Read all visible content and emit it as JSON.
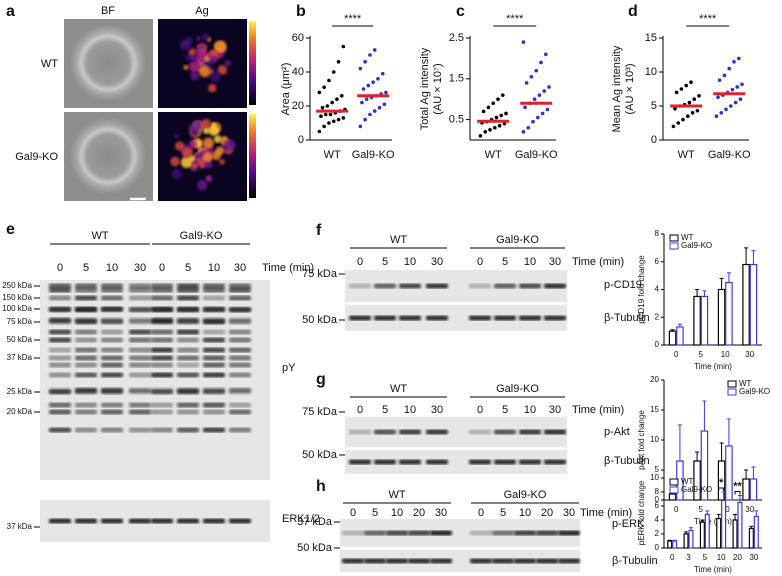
{
  "panel_a": {
    "letter": "a",
    "columns": [
      "BF",
      "Ag"
    ],
    "rows": [
      "WT",
      "Gal9-KO"
    ]
  },
  "chart_data": [
    {
      "type": "dotplot",
      "letter": "b",
      "ylabel": [
        "Area (μm²)"
      ],
      "significance": "****",
      "ylim": [
        0,
        60
      ],
      "yticks": [
        0,
        20,
        40,
        60
      ],
      "groups": [
        {
          "category": "WT",
          "color": "#000000",
          "values": [
            5,
            8,
            10,
            11,
            12,
            13,
            14,
            15,
            15,
            16,
            17,
            18,
            19,
            20,
            22,
            24,
            26,
            28,
            31,
            35,
            40,
            46,
            55
          ],
          "mean": 17,
          "sem": 0.6
        },
        {
          "category": "Gal9-KO",
          "color": "#2f2fd0",
          "values": [
            8,
            12,
            15,
            17,
            19,
            21,
            22,
            24,
            25,
            26,
            27,
            28,
            30,
            32,
            34,
            36,
            39,
            42,
            46,
            50,
            53
          ],
          "mean": 26,
          "sem": 0.8
        }
      ]
    },
    {
      "type": "dotplot",
      "letter": "c",
      "ylabel": [
        "Total Ag intensity",
        "(AU × 10⁷)"
      ],
      "significance": "****",
      "ylim": [
        0,
        2.5
      ],
      "yticks": [
        0.5,
        1.5,
        2.5
      ],
      "groups": [
        {
          "category": "WT",
          "color": "#000000",
          "values": [
            0.1,
            0.2,
            0.25,
            0.3,
            0.35,
            0.4,
            0.42,
            0.45,
            0.5,
            0.55,
            0.6,
            0.65,
            0.7,
            0.8,
            0.9,
            1.0,
            1.1
          ],
          "mean": 0.46,
          "sem": 0.02
        },
        {
          "category": "Gal9-KO",
          "color": "#2f2fd0",
          "values": [
            0.2,
            0.3,
            0.45,
            0.55,
            0.65,
            0.75,
            0.8,
            0.9,
            1.0,
            1.1,
            1.2,
            1.3,
            1.4,
            1.55,
            1.7,
            1.9,
            2.1,
            2.4
          ],
          "mean": 0.9,
          "sem": 0.04
        }
      ]
    },
    {
      "type": "dotplot",
      "letter": "d",
      "ylabel": [
        "Mean Ag intensity",
        "(AU × 10³)"
      ],
      "significance": "****",
      "ylim": [
        0,
        15
      ],
      "yticks": [
        0,
        5,
        10,
        15
      ],
      "groups": [
        {
          "category": "WT",
          "color": "#000000",
          "values": [
            2,
            2.5,
            3,
            3.5,
            4,
            4.3,
            4.6,
            5,
            5.2,
            5.5,
            6,
            6.5,
            7,
            7.5,
            8,
            8.5
          ],
          "mean": 5,
          "sem": 0.1
        },
        {
          "category": "Gal9-KO",
          "color": "#2f2fd0",
          "values": [
            3.5,
            4,
            4.5,
            5,
            5.5,
            6,
            6.3,
            6.6,
            7,
            7.4,
            7.8,
            8.2,
            8.8,
            9.5,
            10.5,
            11.5,
            12
          ],
          "mean": 6.8,
          "sem": 0.15
        }
      ]
    },
    {
      "type": "bar",
      "ylabel": "pCD19 fold change",
      "xlabel": "Time (min)",
      "categories": [
        "0",
        "5",
        "10",
        "30"
      ],
      "ylim": [
        0,
        8
      ],
      "yticks": [
        0,
        2,
        4,
        6,
        8
      ],
      "legend": "top-left",
      "series": [
        {
          "name": "WT",
          "color": "#000000",
          "values": [
            1,
            3.5,
            4,
            5.8
          ],
          "errors": [
            0.1,
            0.5,
            0.8,
            1.2
          ]
        },
        {
          "name": "Gal9-KO",
          "color": "#3a3ae0",
          "values": [
            1.3,
            3.5,
            4.5,
            5.8
          ],
          "errors": [
            0.2,
            0.4,
            0.7,
            1.0
          ]
        }
      ]
    },
    {
      "type": "bar",
      "ylabel": "pAkt fold change",
      "xlabel": "Time (min)",
      "categories": [
        "0",
        "5",
        "10",
        "30"
      ],
      "ylim": [
        0,
        20
      ],
      "yticks": [
        0,
        5,
        10,
        15,
        20
      ],
      "legend": "top-right",
      "series": [
        {
          "name": "WT",
          "color": "#000000",
          "values": [
            1,
            6.5,
            6.5,
            3.5
          ],
          "errors": [
            0.3,
            1.5,
            3,
            1.5
          ]
        },
        {
          "name": "Gal9-KO",
          "color": "#3a3ae0",
          "values": [
            6.5,
            11.5,
            9,
            3.5
          ],
          "errors": [
            6,
            5,
            4.5,
            2
          ]
        }
      ]
    },
    {
      "type": "bar",
      "ylabel": "pERK fold change",
      "xlabel": "Time (min)",
      "categories": [
        "0",
        "3",
        "5",
        "10",
        "20",
        "30"
      ],
      "ylim": [
        0,
        10
      ],
      "yticks": [
        0,
        2,
        4,
        6,
        8,
        10
      ],
      "legend": "top-left",
      "annotations": [
        {
          "text": "*",
          "x": "10"
        },
        {
          "text": "**",
          "x": "20"
        }
      ],
      "series": [
        {
          "name": "WT",
          "color": "#000000",
          "values": [
            1,
            2,
            3.7,
            4.2,
            4,
            2.8
          ],
          "errors": [
            0.1,
            0.3,
            0.3,
            0.6,
            0.8,
            0.3
          ]
        },
        {
          "name": "Gal9-KO",
          "color": "#3a3ae0",
          "values": [
            1,
            2.5,
            4.8,
            6.8,
            6.5,
            4.5
          ],
          "errors": [
            0.1,
            0.4,
            0.5,
            1.2,
            1.0,
            0.8
          ]
        }
      ]
    }
  ],
  "blots": [
    {
      "letter": "e",
      "groups": [
        "WT",
        "Gal9-KO"
      ],
      "lanes": [
        "0",
        "5",
        "10",
        "30",
        "0",
        "5",
        "10",
        "30"
      ],
      "time_label": "Time (min)",
      "markers": [
        "250 kDa",
        "150 kDa",
        "100 kDa",
        "75 kDa",
        "50 kDa",
        "37 kDa",
        "25 kDa",
        "20 kDa"
      ],
      "rows": [
        "pY",
        "ERK1/2"
      ],
      "lower_markers": [
        "37 kDa"
      ]
    },
    {
      "letter": "f",
      "groups": [
        "WT",
        "Gal9-KO"
      ],
      "lanes": [
        "0",
        "5",
        "10",
        "30",
        "0",
        "5",
        "10",
        "30"
      ],
      "time_label": "Time (min)",
      "markers": [
        "75 kDa",
        "50 kDa"
      ],
      "rows": [
        "p-CD19",
        "β-Tubulin"
      ]
    },
    {
      "letter": "g",
      "groups": [
        "WT",
        "Gal9-KO"
      ],
      "lanes": [
        "0",
        "5",
        "10",
        "30",
        "0",
        "5",
        "10",
        "30"
      ],
      "time_label": "Time (min)",
      "markers": [
        "75 kDa",
        "50 kDa"
      ],
      "rows": [
        "p-Akt",
        "β-Tubulin"
      ]
    },
    {
      "letter": "h",
      "groups": [
        "WT",
        "Gal9-KO"
      ],
      "lanes": [
        "0",
        "5",
        "10",
        "20",
        "30",
        "0",
        "5",
        "10",
        "20",
        "30"
      ],
      "time_label": "Time (min)",
      "markers": [
        "37 kDa",
        "50 kDa"
      ],
      "rows": [
        "p-ERK",
        "β-Tubulin"
      ]
    }
  ]
}
